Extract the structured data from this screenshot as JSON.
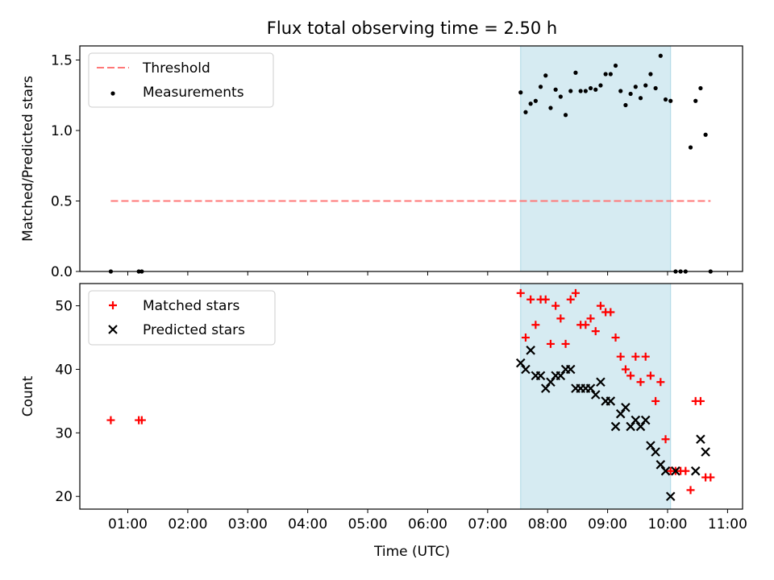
{
  "title": "Flux total observing time = 2.50 h",
  "xlabel": "Time (UTC)",
  "x_ticks": [
    "01:00",
    "02:00",
    "03:00",
    "04:00",
    "05:00",
    "06:00",
    "07:00",
    "08:00",
    "09:00",
    "10:00",
    "11:00"
  ],
  "colors": {
    "threshold": "#ff7777",
    "measurements": "#000000",
    "matched": "#ff0000",
    "predicted": "#000000",
    "shade": "#add8e6"
  },
  "chart_data": [
    {
      "type": "scatter",
      "ylabel": "Matched/Predicted stars",
      "xlim": [
        "00:12",
        "11:15"
      ],
      "ylim": [
        0,
        1.6
      ],
      "y_ticks": [
        "0.0",
        "0.5",
        "1.0",
        "1.5"
      ],
      "shaded_span": [
        "07:33",
        "10:03"
      ],
      "legend_position": "top-left",
      "legend": [
        "Threshold",
        "Measurements"
      ],
      "threshold": {
        "name": "Threshold",
        "value": 0.5,
        "x": [
          "00:43",
          "10:43"
        ]
      },
      "series": [
        {
          "name": "Measurements",
          "x": [
            "00:43",
            "01:11",
            "01:14",
            "07:33",
            "07:38",
            "07:43",
            "07:48",
            "07:53",
            "07:58",
            "08:03",
            "08:08",
            "08:13",
            "08:18",
            "08:23",
            "08:28",
            "08:33",
            "08:38",
            "08:43",
            "08:48",
            "08:53",
            "08:58",
            "09:03",
            "09:08",
            "09:13",
            "09:18",
            "09:23",
            "09:28",
            "09:33",
            "09:38",
            "09:43",
            "09:48",
            "09:53",
            "09:58",
            "10:03",
            "10:08",
            "10:13",
            "10:18",
            "10:23",
            "10:28",
            "10:33",
            "10:38",
            "10:43"
          ],
          "y": [
            0,
            0,
            0,
            1.27,
            1.13,
            1.19,
            1.21,
            1.31,
            1.39,
            1.16,
            1.29,
            1.24,
            1.11,
            1.28,
            1.41,
            1.28,
            1.28,
            1.3,
            1.29,
            1.32,
            1.4,
            1.4,
            1.46,
            1.28,
            1.18,
            1.26,
            1.31,
            1.23,
            1.32,
            1.4,
            1.3,
            1.53,
            1.22,
            1.21,
            0,
            0,
            0,
            0.88,
            1.21,
            1.3,
            0.97,
            0
          ]
        }
      ]
    },
    {
      "type": "scatter",
      "ylabel": "Count",
      "xlim": [
        "00:12",
        "11:15"
      ],
      "ylim": [
        18,
        53.5
      ],
      "y_ticks": [
        "20",
        "30",
        "40",
        "50"
      ],
      "shaded_span": [
        "07:33",
        "10:03"
      ],
      "legend_position": "top-left",
      "legend": [
        "Matched stars",
        "Predicted stars"
      ],
      "series": [
        {
          "name": "Matched stars",
          "x": [
            "00:43",
            "01:11",
            "01:14",
            "07:33",
            "07:38",
            "07:43",
            "07:48",
            "07:53",
            "07:58",
            "08:03",
            "08:08",
            "08:13",
            "08:18",
            "08:23",
            "08:28",
            "08:33",
            "08:38",
            "08:43",
            "08:48",
            "08:53",
            "08:58",
            "09:03",
            "09:08",
            "09:13",
            "09:18",
            "09:23",
            "09:28",
            "09:33",
            "09:38",
            "09:43",
            "09:48",
            "09:53",
            "09:58",
            "10:03",
            "10:08",
            "10:13",
            "10:18",
            "10:23",
            "10:28",
            "10:33",
            "10:38",
            "10:43"
          ],
          "y": [
            32,
            32,
            32,
            52,
            45,
            51,
            47,
            51,
            51,
            44,
            50,
            48,
            44,
            51,
            52,
            47,
            47,
            48,
            46,
            50,
            49,
            49,
            45,
            42,
            40,
            39,
            42,
            38,
            42,
            39,
            35,
            38,
            29,
            24,
            24,
            24,
            24,
            21,
            35,
            35,
            23,
            23
          ]
        },
        {
          "name": "Predicted stars",
          "x": [
            "07:33",
            "07:38",
            "07:43",
            "07:48",
            "07:53",
            "07:58",
            "08:03",
            "08:08",
            "08:13",
            "08:18",
            "08:23",
            "08:28",
            "08:33",
            "08:38",
            "08:43",
            "08:48",
            "08:53",
            "08:58",
            "09:03",
            "09:08",
            "09:13",
            "09:18",
            "09:23",
            "09:28",
            "09:33",
            "09:38",
            "09:43",
            "09:48",
            "09:53",
            "09:58",
            "10:03",
            "10:08",
            "10:28",
            "10:33",
            "10:38"
          ],
          "y": [
            41,
            40,
            43,
            39,
            39,
            37,
            38,
            39,
            39,
            40,
            40,
            37,
            37,
            37,
            37,
            36,
            38,
            35,
            35,
            31,
            33,
            34,
            31,
            32,
            31,
            32,
            28,
            27,
            25,
            24,
            20,
            24,
            24,
            29,
            27
          ]
        }
      ]
    }
  ]
}
